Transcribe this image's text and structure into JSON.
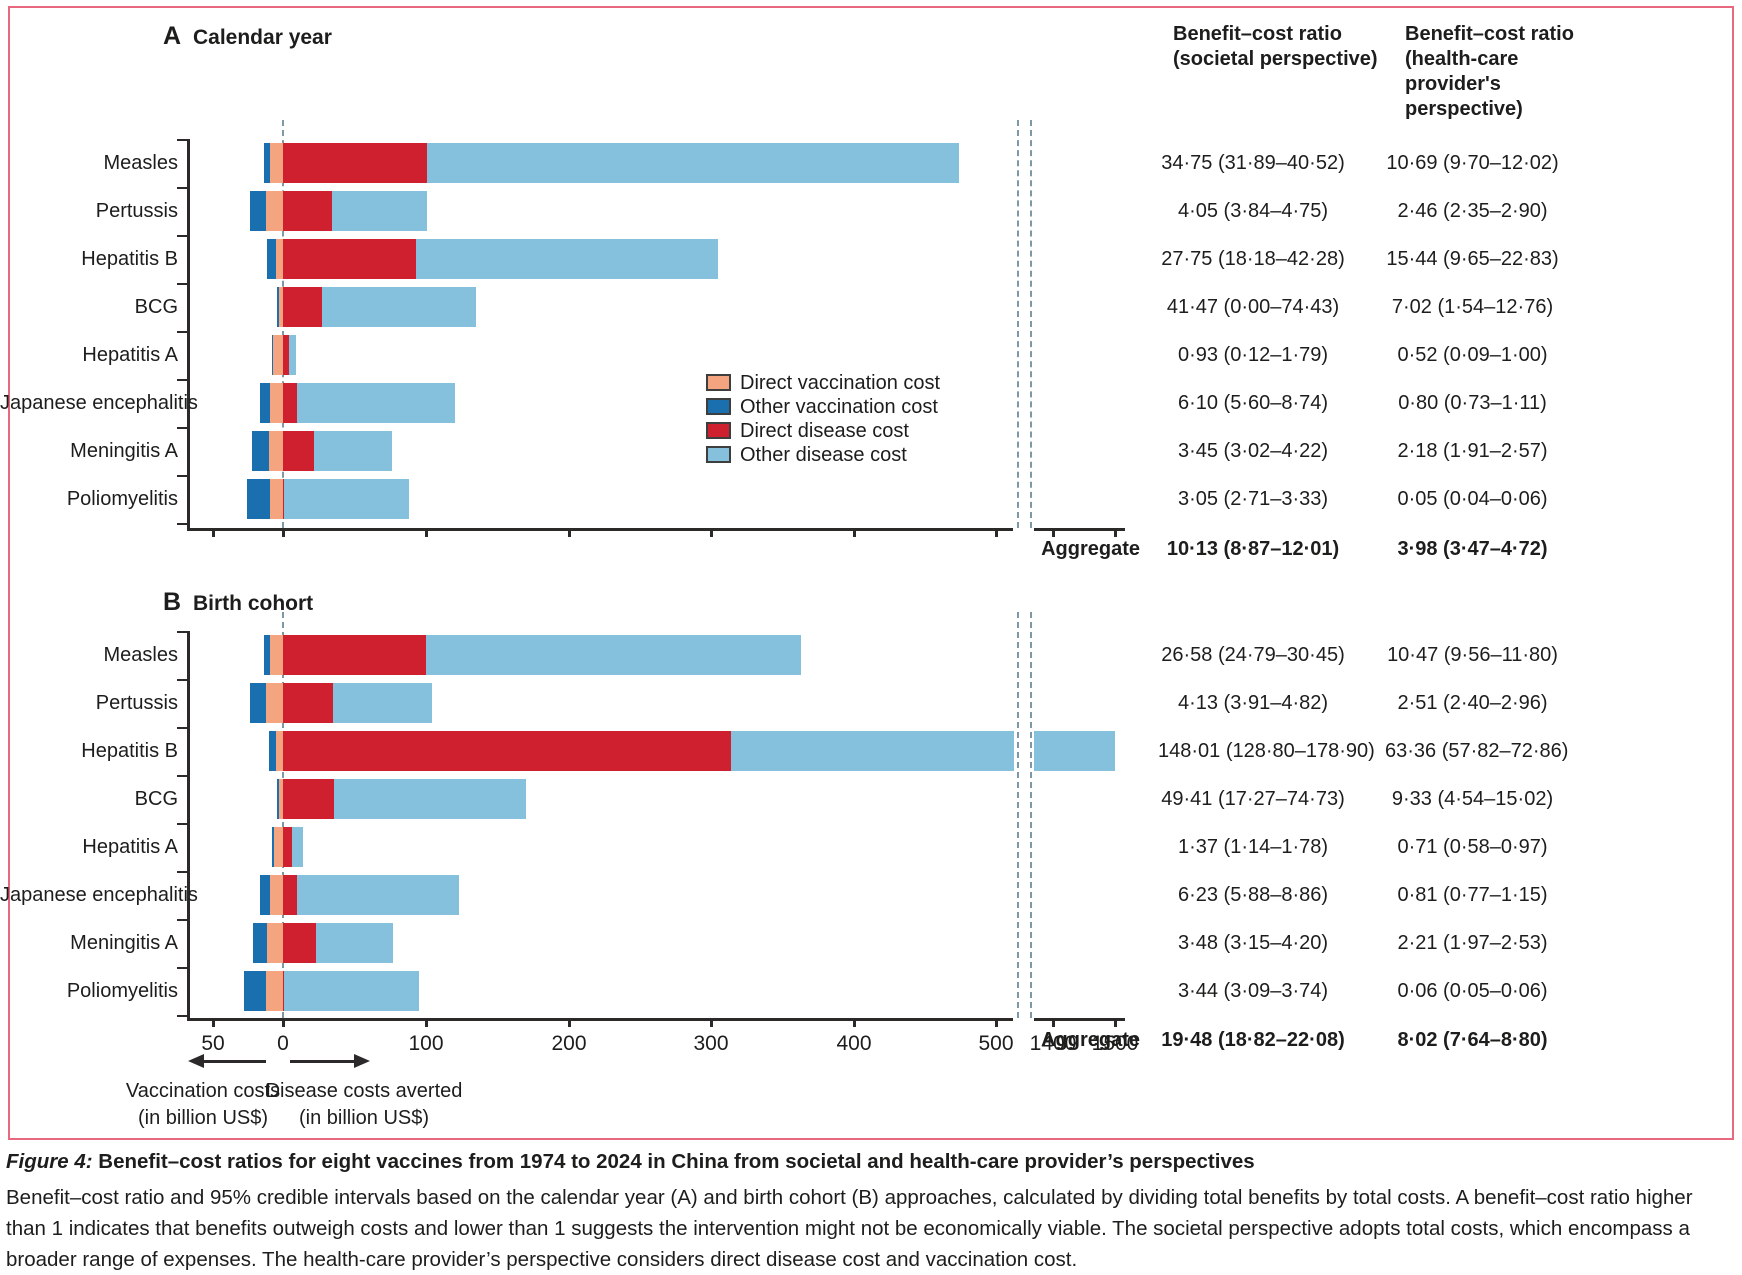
{
  "figure": {
    "caption_label": "Figure 4:",
    "caption_title": " Benefit–cost ratios for eight vaccines from 1974 to 2024 in China from societal and health-care provider’s perspectives",
    "caption_body": "Benefit–cost ratio and 95% credible intervals based on the calendar year (A) and birth cohort (B) approaches, calculated by dividing total benefits by total costs. A benefit–cost ratio higher than 1 indicates that benefits outweigh costs and lower than 1 suggests the intervention might not be economically viable. The societal perspective adopts total costs, which encompass a broader range of expenses. The health-care provider’s perspective considers direct disease cost and vaccination cost."
  },
  "columns": {
    "societal_header": [
      "Benefit–cost ratio",
      "(societal perspective)"
    ],
    "provider_header": [
      "Benefit–cost ratio",
      "(health-care",
      "provider's",
      "perspective)"
    ],
    "aggregate_label": "Aggregate"
  },
  "legend": [
    {
      "name": "direct-vaccination-cost",
      "label": "Direct vaccination cost",
      "color": "#F4A57F"
    },
    {
      "name": "other-vaccination-cost",
      "label": "Other vaccination cost",
      "color": "#1A6FAF"
    },
    {
      "name": "direct-disease-cost",
      "label": "Direct disease cost",
      "color": "#CE202F"
    },
    {
      "name": "other-disease-cost",
      "label": "Other disease cost",
      "color": "#85C1DD"
    }
  ],
  "axis": {
    "unit": "billion US$",
    "tick_values": [
      -50,
      0,
      100,
      200,
      300,
      400,
      500,
      1400,
      1500
    ],
    "tick_labels": [
      "50",
      "0",
      "100",
      "200",
      "300",
      "400",
      "500",
      "1400",
      "1500"
    ],
    "break_between": [
      500,
      1400
    ],
    "arrow_left_label": [
      "Vaccination costs",
      "(in billion US$)"
    ],
    "arrow_right_label": [
      "Disease costs averted",
      "(in billion US$)"
    ]
  },
  "chart_data": [
    {
      "type": "bar",
      "panel_letter": "A",
      "panel_title": "Calendar year",
      "orientation": "horizontal-diverging-stacked",
      "unit": "billion US$",
      "xlim": [
        -50,
        1500
      ],
      "rows": [
        {
          "vaccine": "Measles",
          "other_vaccination_cost": 4,
          "direct_vaccination_cost": 9,
          "direct_disease_cost": 101,
          "other_disease_cost": 372,
          "bcr_societal": "34·75 (31·89–40·52)",
          "bcr_provider": "10·69 (9·70–12·02)"
        },
        {
          "vaccine": "Pertussis",
          "other_vaccination_cost": 11,
          "direct_vaccination_cost": 12,
          "direct_disease_cost": 34,
          "other_disease_cost": 67,
          "bcr_societal": "4·05 (3·84–4·75)",
          "bcr_provider": "2·46 (2·35–2·90)"
        },
        {
          "vaccine": "Hepatitis B",
          "other_vaccination_cost": 6,
          "direct_vaccination_cost": 5,
          "direct_disease_cost": 93,
          "other_disease_cost": 211,
          "bcr_societal": "27·75 (18·18–42·28)",
          "bcr_provider": "15·44 (9·65–22·83)"
        },
        {
          "vaccine": "BCG",
          "other_vaccination_cost": 1,
          "direct_vaccination_cost": 3,
          "direct_disease_cost": 27,
          "other_disease_cost": 108,
          "bcr_societal": "41·47 (0·00–74·43)",
          "bcr_provider": "7·02 (1·54–12·76)"
        },
        {
          "vaccine": "Hepatitis A",
          "other_vaccination_cost": 1,
          "direct_vaccination_cost": 7,
          "direct_disease_cost": 4,
          "other_disease_cost": 5,
          "bcr_societal": "0·93 (0·12–1·79)",
          "bcr_provider": "0·52 (0·09–1·00)"
        },
        {
          "vaccine": "Japanese encephalitis",
          "other_vaccination_cost": 7,
          "direct_vaccination_cost": 9,
          "direct_disease_cost": 10,
          "other_disease_cost": 110,
          "bcr_societal": "6·10 (5·60–8·74)",
          "bcr_provider": "0·80 (0·73–1·11)"
        },
        {
          "vaccine": "Meningitis A",
          "other_vaccination_cost": 12,
          "direct_vaccination_cost": 10,
          "direct_disease_cost": 22,
          "other_disease_cost": 54,
          "bcr_societal": "3·45 (3·02–4·22)",
          "bcr_provider": "2·18 (1·91–2·57)"
        },
        {
          "vaccine": "Poliomyelitis",
          "other_vaccination_cost": 16,
          "direct_vaccination_cost": 9,
          "direct_disease_cost": 1,
          "other_disease_cost": 87,
          "bcr_societal": "3·05 (2·71–3·33)",
          "bcr_provider": "0·05 (0·04–0·06)"
        }
      ],
      "aggregate": {
        "bcr_societal": "10·13 (8·87–12·01)",
        "bcr_provider": "3·98 (3·47–4·72)"
      }
    },
    {
      "type": "bar",
      "panel_letter": "B",
      "panel_title": "Birth cohort",
      "orientation": "horizontal-diverging-stacked",
      "unit": "billion US$",
      "xlim": [
        -50,
        1500
      ],
      "rows": [
        {
          "vaccine": "Measles",
          "other_vaccination_cost": 4,
          "direct_vaccination_cost": 9,
          "direct_disease_cost": 100,
          "other_disease_cost": 262,
          "bcr_societal": "26·58 (24·79–30·45)",
          "bcr_provider": "10·47 (9·56–11·80)"
        },
        {
          "vaccine": "Pertussis",
          "other_vaccination_cost": 11,
          "direct_vaccination_cost": 12,
          "direct_disease_cost": 35,
          "other_disease_cost": 69,
          "bcr_societal": "4·13 (3·91–4·82)",
          "bcr_provider": "2·51 (2·40–2·96)"
        },
        {
          "vaccine": "Hepatitis B",
          "other_vaccination_cost": 5,
          "direct_vaccination_cost": 5,
          "direct_disease_cost": 313,
          "other_disease_cost": 1187,
          "bcr_societal": "148·01 (128·80–178·90)",
          "bcr_provider": "63·36 (57·82–72·86)"
        },
        {
          "vaccine": "BCG",
          "other_vaccination_cost": 1,
          "direct_vaccination_cost": 3,
          "direct_disease_cost": 36,
          "other_disease_cost": 134,
          "bcr_societal": "49·41 (17·27–74·73)",
          "bcr_provider": "9·33 (4·54–15·02)"
        },
        {
          "vaccine": "Hepatitis A",
          "other_vaccination_cost": 2,
          "direct_vaccination_cost": 6,
          "direct_disease_cost": 6,
          "other_disease_cost": 8,
          "bcr_societal": "1·37 (1·14–1·78)",
          "bcr_provider": "0·71 (0·58–0·97)"
        },
        {
          "vaccine": "Japanese encephalitis",
          "other_vaccination_cost": 7,
          "direct_vaccination_cost": 9,
          "direct_disease_cost": 10,
          "other_disease_cost": 113,
          "bcr_societal": "6·23 (5·88–8·86)",
          "bcr_provider": "0·81 (0·77–1·15)"
        },
        {
          "vaccine": "Meningitis A",
          "other_vaccination_cost": 10,
          "direct_vaccination_cost": 11,
          "direct_disease_cost": 23,
          "other_disease_cost": 54,
          "bcr_societal": "3·48 (3·15–4·20)",
          "bcr_provider": "2·21 (1·97–2·53)"
        },
        {
          "vaccine": "Poliomyelitis",
          "other_vaccination_cost": 15,
          "direct_vaccination_cost": 12,
          "direct_disease_cost": 1,
          "other_disease_cost": 94,
          "bcr_societal": "3·44 (3·09–3·74)",
          "bcr_provider": "0·06 (0·05–0·06)"
        }
      ],
      "aggregate": {
        "bcr_societal": "19·48 (18·82–22·08)",
        "bcr_provider": "8·02 (7·64–8·80)"
      }
    }
  ],
  "colors": {
    "direct_vaccination": "#F4A57F",
    "other_vaccination": "#1A6FAF",
    "direct_disease": "#CE202F",
    "other_disease": "#85C1DD",
    "frame_border": "#E8687F",
    "axis": "#2b2a29",
    "dashed_guides": "#7E98A6"
  }
}
